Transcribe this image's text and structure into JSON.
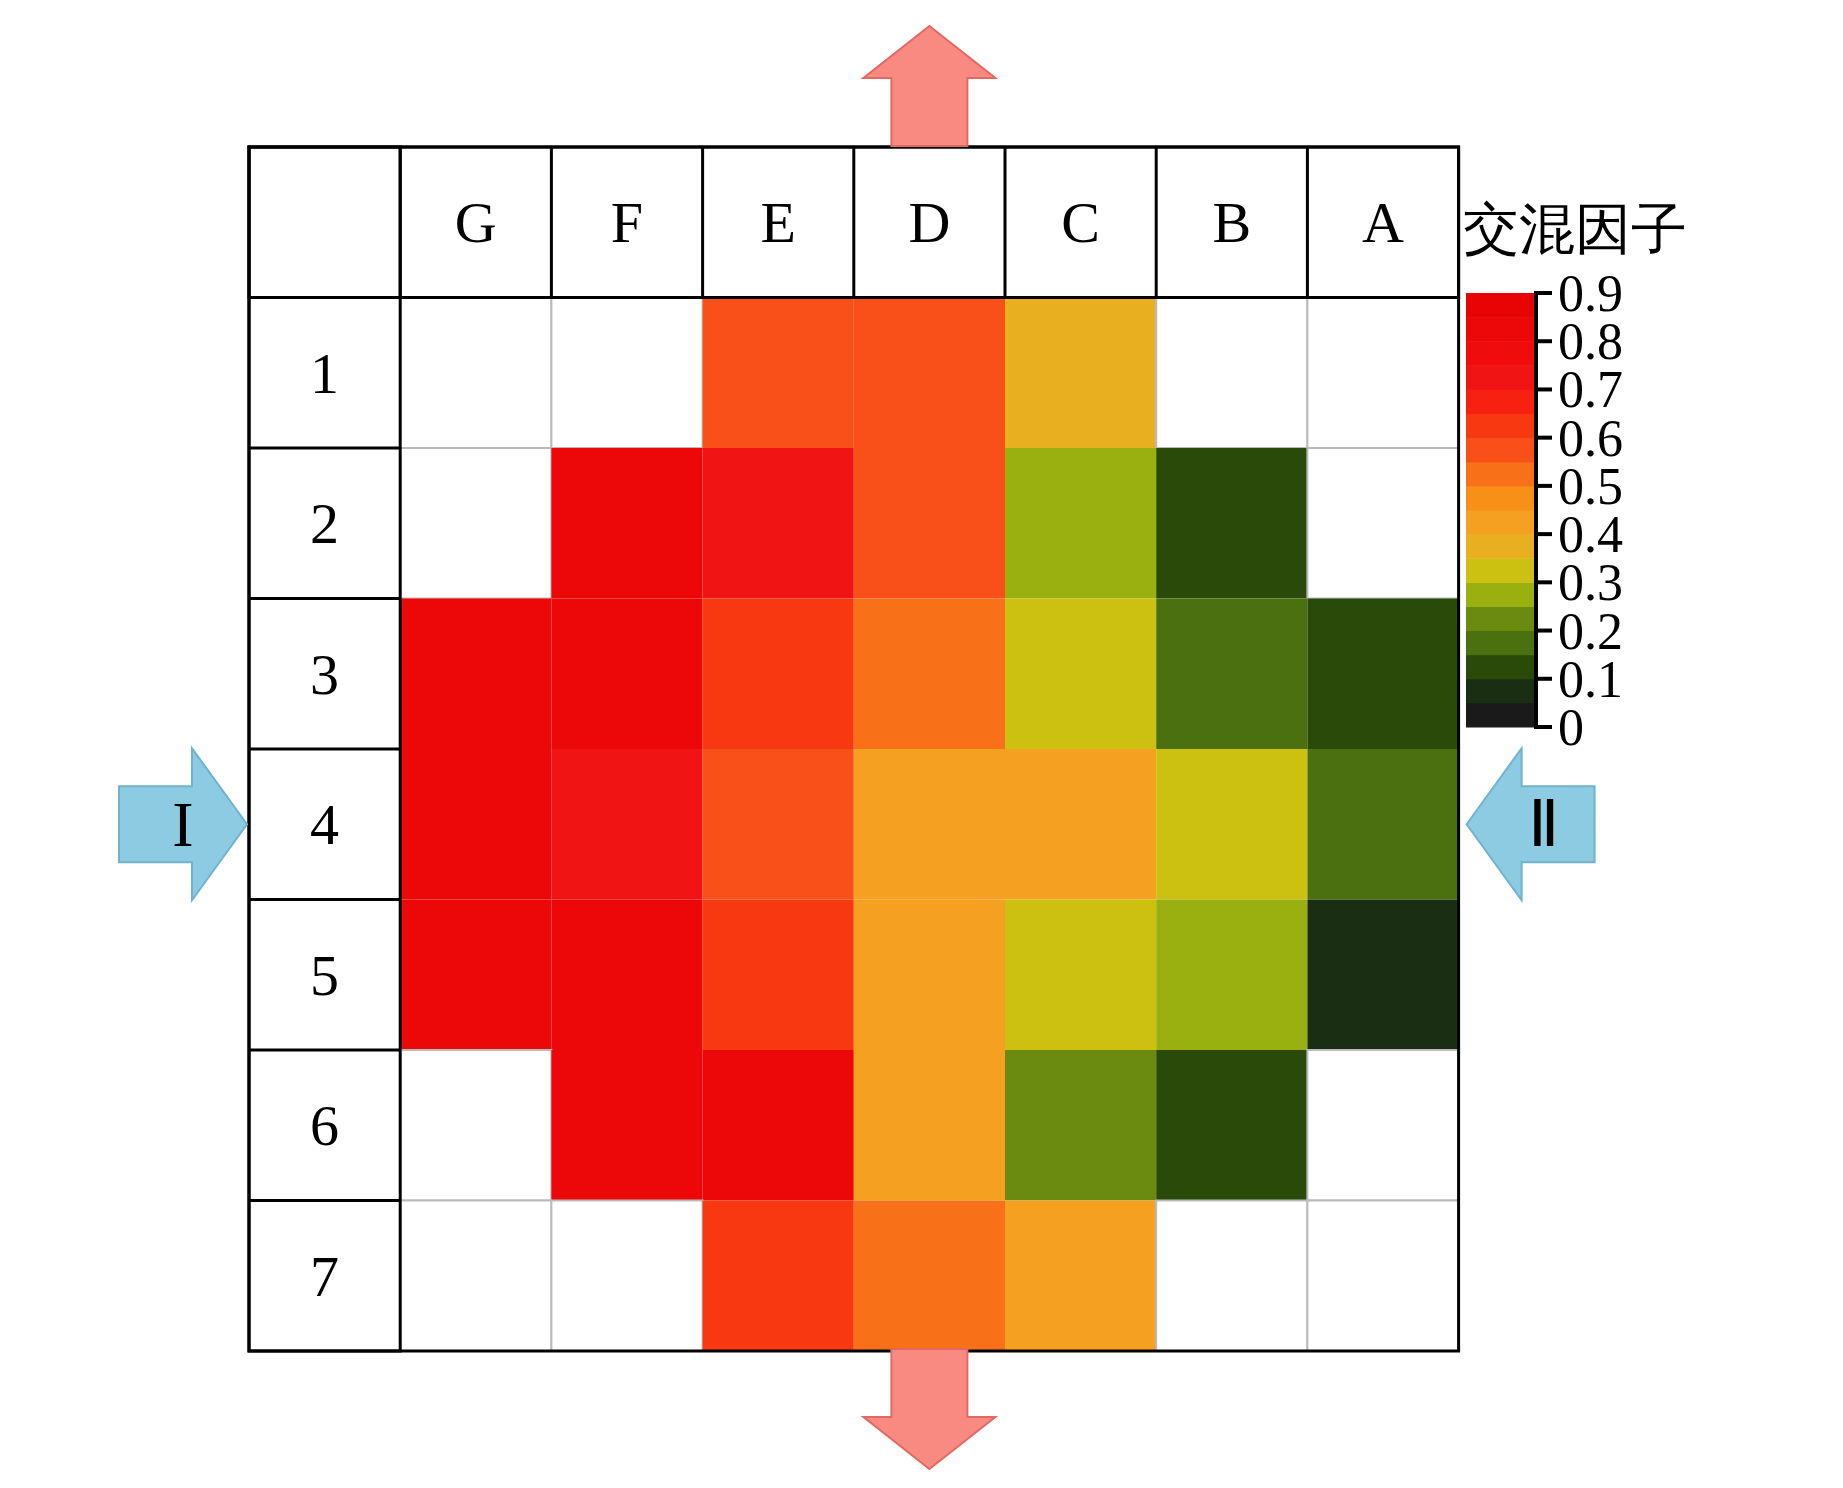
{
  "chart_data": {
    "type": "heatmap",
    "clabel": "交混因子",
    "categories": [
      "G",
      "F",
      "E",
      "D",
      "C",
      "B",
      "A"
    ],
    "y_categories": [
      "1",
      "2",
      "3",
      "4",
      "5",
      "6",
      "7"
    ],
    "cells": [
      [
        null,
        null,
        0.57,
        0.57,
        0.38,
        null,
        null
      ],
      [
        null,
        0.8,
        0.75,
        0.57,
        0.28,
        0.12,
        null
      ],
      [
        0.82,
        0.82,
        0.63,
        0.52,
        0.32,
        0.18,
        0.12
      ],
      [
        0.82,
        0.75,
        0.57,
        0.42,
        0.4,
        0.3,
        0.18
      ],
      [
        0.82,
        0.82,
        0.63,
        0.42,
        0.32,
        0.25,
        0.07
      ],
      [
        null,
        0.82,
        0.8,
        0.42,
        0.24,
        0.12,
        null
      ],
      [
        null,
        null,
        0.63,
        0.52,
        0.42,
        null,
        null
      ]
    ],
    "clim": [
      0,
      0.9
    ],
    "cticks": [
      0,
      0.1,
      0.2,
      0.3,
      0.4,
      0.5,
      0.6,
      0.7,
      0.8,
      0.9
    ],
    "annotations": [
      "I",
      "Ⅱ"
    ]
  }
}
